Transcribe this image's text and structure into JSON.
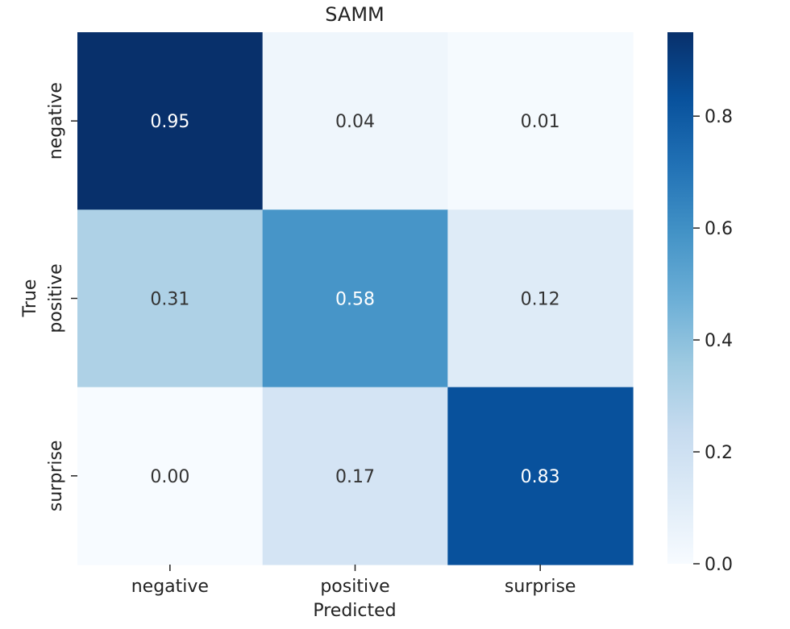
{
  "chart_data": {
    "type": "heatmap",
    "title": "SAMM",
    "xlabel": "Predicted",
    "ylabel": "True",
    "x_categories": [
      "negative",
      "positive",
      "surprise"
    ],
    "y_categories": [
      "negative",
      "positive",
      "surprise"
    ],
    "cell_labels": [
      [
        "0.95",
        "0.04",
        "0.01"
      ],
      [
        "0.31",
        "0.58",
        "0.12"
      ],
      [
        "0.00",
        "0.17",
        "0.83"
      ]
    ],
    "values": [
      [
        0.95,
        0.04,
        0.01
      ],
      [
        0.31,
        0.58,
        0.12
      ],
      [
        0.0,
        0.17,
        0.83
      ]
    ],
    "colormap": "Blues",
    "colormap_stops": [
      "#f7fbff",
      "#deebf7",
      "#c6dbef",
      "#9ecae1",
      "#6baed6",
      "#4292c6",
      "#2171b5",
      "#08519c",
      "#08306b"
    ],
    "color_range": [
      0.0,
      0.95
    ],
    "colorbar_ticks": [
      0.0,
      0.2,
      0.4,
      0.6,
      0.8
    ],
    "colorbar_tick_labels": [
      "0.0",
      "0.2",
      "0.4",
      "0.6",
      "0.8"
    ],
    "grid": false
  }
}
